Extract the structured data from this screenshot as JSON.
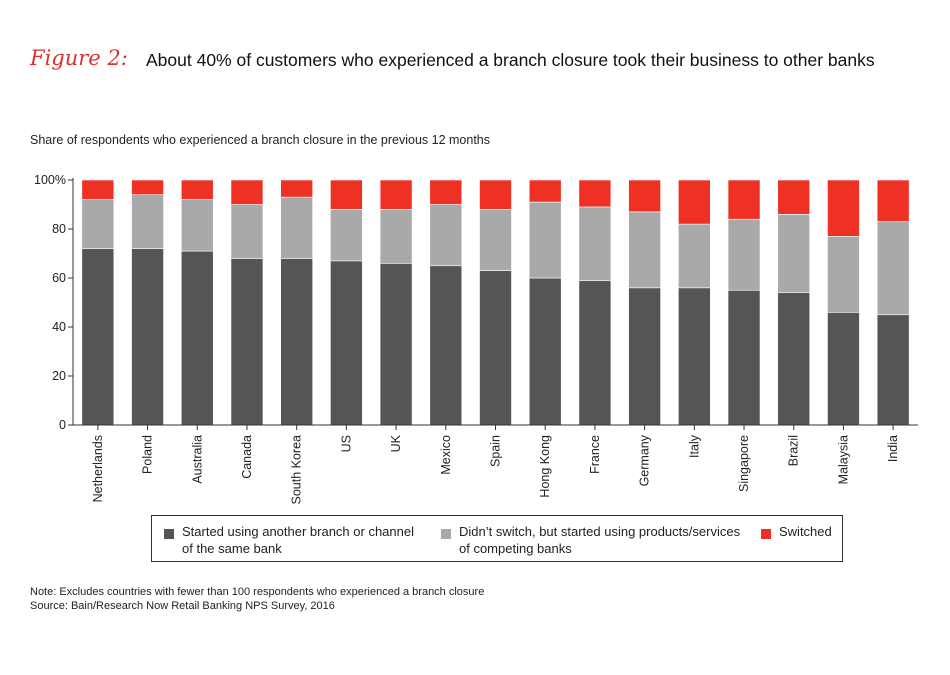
{
  "header": {
    "figure_label": "Figure 2:",
    "title": "About 40% of customers who experienced a branch closure took their business to other banks",
    "subtitle": "Share of respondents who experienced a branch closure in the previous 12 months"
  },
  "legend": {
    "same_bank_line1": "Started using another branch or channel",
    "same_bank_line2": "of the same bank",
    "competing_line1": "Didn’t switch, but started using products/services",
    "competing_line2": "of competing banks",
    "switched": "Switched"
  },
  "footer": {
    "note": "Note: Excludes countries with fewer than 100 respondents who experienced a branch closure",
    "source": "Source: Bain/Research Now Retail Banking NPS Survey, 2016"
  },
  "colors": {
    "same_bank": "#555555",
    "competing": "#a9a9a9",
    "switched": "#ee3124",
    "figure_label": "#e0302a"
  },
  "chart_data": {
    "type": "bar",
    "stacked": true,
    "categories": [
      "Netherlands",
      "Poland",
      "Australia",
      "Canada",
      "South Korea",
      "US",
      "UK",
      "Mexico",
      "Spain",
      "Hong Kong",
      "France",
      "Germany",
      "Italy",
      "Singapore",
      "Brazil",
      "Malaysia",
      "India"
    ],
    "series": [
      {
        "name": "Started using another branch or channel of the same bank",
        "values": [
          72,
          72,
          71,
          68,
          68,
          67,
          66,
          65,
          63,
          60,
          59,
          56,
          56,
          55,
          54,
          46,
          45
        ]
      },
      {
        "name": "Didn’t switch, but started using products/services of competing banks",
        "values": [
          20,
          22,
          21,
          22,
          25,
          21,
          22,
          25,
          25,
          31,
          30,
          31,
          26,
          29,
          32,
          31,
          38
        ]
      },
      {
        "name": "Switched",
        "values": [
          8,
          6,
          8,
          10,
          7,
          12,
          12,
          10,
          12,
          9,
          11,
          13,
          18,
          16,
          14,
          23,
          17
        ]
      }
    ],
    "ylim": [
      0,
      100
    ],
    "yticks": [
      0,
      20,
      40,
      60,
      80,
      100
    ],
    "ytick_labels": [
      "0",
      "20",
      "40",
      "60",
      "80",
      "100%"
    ],
    "xlabel": "",
    "ylabel": ""
  }
}
